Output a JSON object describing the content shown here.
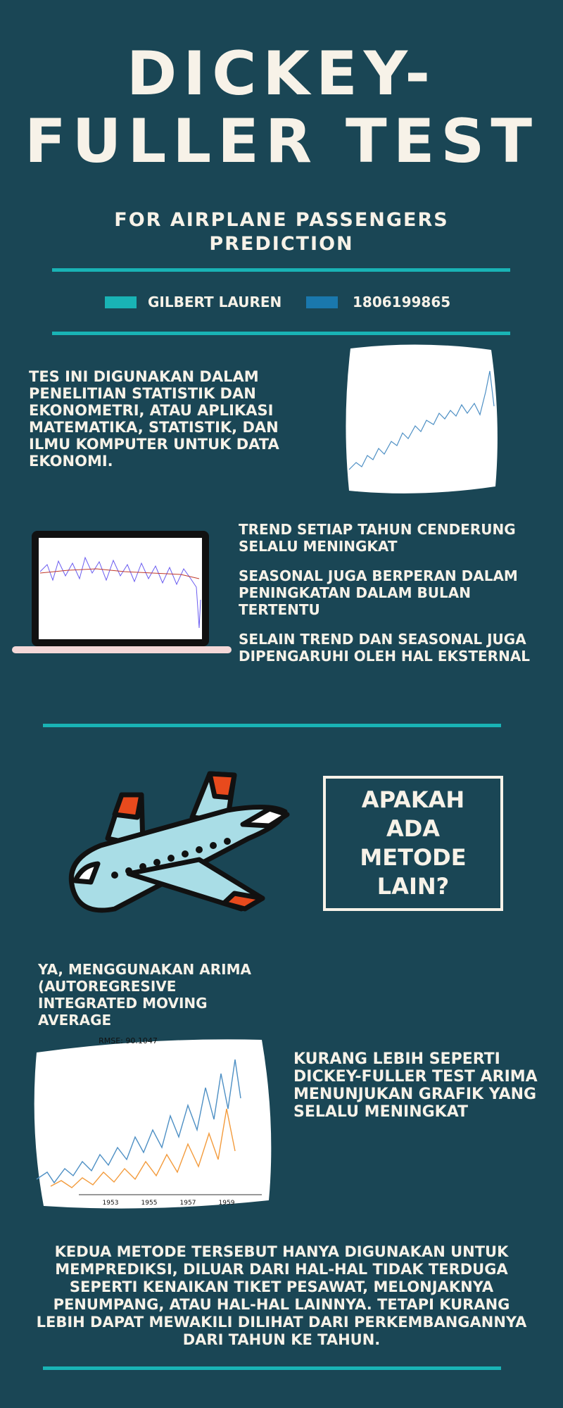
{
  "header": {
    "title_lines": [
      "DICKEY-",
      "FULLER TEST"
    ],
    "subtitle": "FOR AIRPLANE PASSENGERS PREDICTION",
    "author": "GILBERT LAUREN",
    "student_id": "1806199865"
  },
  "intro": "TES INI DIGUNAKAN DALAM PENELITIAN STATISTIK DAN EKONOMETRI, ATAU APLIKASI MATEMATIKA, STATISTIK, DAN ILMU KOMPUTER UNTUK DATA EKONOMI.",
  "points": [
    "TREND SETIAP TAHUN CENDERUNG SELALU MENINGKAT",
    "SEASONAL JUGA BERPERAN DALAM PENINGKATAN DALAM BULAN TERTENTU",
    "SELAIN TREND DAN SEASONAL JUGA DIPENGARUHI OLEH HAL EKSTERNAL"
  ],
  "question": "APAKAH ADA METODE LAIN?",
  "answer": "YA, MENGGUNAKAN ARIMA (AUTOREGRESIVE INTEGRATED MOVING AVERAGE",
  "arima_chart": {
    "label": "RMSE: 90.1047",
    "xticks": [
      "1953",
      "1955",
      "1957",
      "1959"
    ]
  },
  "arima_note": "KURANG LEBIH SEPERTI DICKEY-FULLER TEST ARIMA MENUNJUKAN GRAFIK YANG SELALU MENINGKAT",
  "conclusion": "KEDUA METODE TERSEBUT HANYA DIGUNAKAN UNTUK MEMPREDIKSI, DILUAR DARI HAL-HAL TIDAK TERDUGA SEPERTI KENAIKAN TIKET PESAWAT, MELONJAKNYA PENUMPANG, ATAU HAL-HAL LAINNYA. TETAPI KURANG LEBIH DAPAT MEWAKILI DILIHAT DARI PERKEMBANGANNYA DARI TAHUN KE TAHUN."
}
